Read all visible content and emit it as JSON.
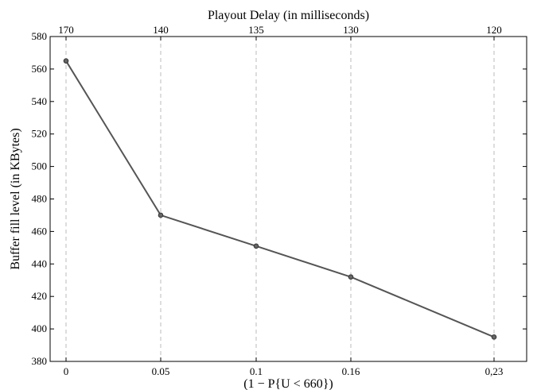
{
  "chart_data": {
    "type": "line",
    "title": "",
    "xlabel": "(1 − P{U < 660})",
    "ylabel": "Buffer fill level (in KBytes)",
    "top_xlabel": "Playout Delay (in milliseconds)",
    "categories": [
      "0",
      "0.05",
      "0.1",
      "0.16",
      "0,23"
    ],
    "top_categories": [
      "170",
      "140",
      "135",
      "130",
      "120"
    ],
    "series": [
      {
        "values": [
          565,
          470,
          451,
          432,
          395
        ]
      }
    ],
    "ylim": [
      380,
      580
    ],
    "yticks": [
      380,
      400,
      420,
      440,
      460,
      480,
      500,
      520,
      540,
      560,
      580
    ],
    "grid": "vertical-dashed",
    "line_color": "#555555",
    "grid_color": "#bbbbbb"
  }
}
